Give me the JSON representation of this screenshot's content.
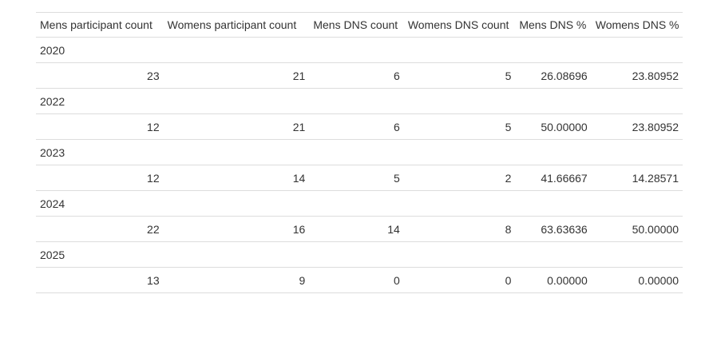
{
  "table": {
    "headers": [
      "Mens participant count",
      "Womens participant count",
      "Mens DNS count",
      "Womens DNS count",
      "Mens DNS %",
      "Womens DNS %"
    ],
    "groups": [
      {
        "label": "2020",
        "values": [
          "23",
          "21",
          "6",
          "5",
          "26.08696",
          "23.80952"
        ]
      },
      {
        "label": "2022",
        "values": [
          "12",
          "21",
          "6",
          "5",
          "50.00000",
          "23.80952"
        ]
      },
      {
        "label": "2023",
        "values": [
          "12",
          "14",
          "5",
          "2",
          "41.66667",
          "14.28571"
        ]
      },
      {
        "label": "2024",
        "values": [
          "22",
          "16",
          "14",
          "8",
          "63.63636",
          "50.00000"
        ]
      },
      {
        "label": "2025",
        "values": [
          "13",
          "9",
          "0",
          "0",
          "0.00000",
          "0.00000"
        ]
      }
    ]
  }
}
